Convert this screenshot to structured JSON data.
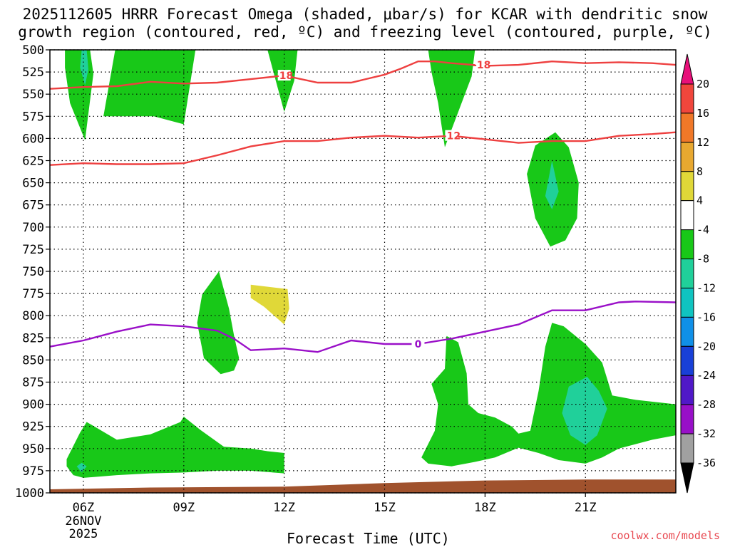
{
  "title": {
    "line1": "2025112605 HRRR Forecast Omega (shaded, μbar/s) for KCAR with dendritic snow",
    "line2": "growth region (contoured, red, ºC) and freezing level (contoured, purple, ºC)"
  },
  "credit": "coolwx.com/models",
  "chart_data": {
    "type": "area",
    "xlabel": "Forecast Time (UTC)",
    "ylabel": "",
    "x_range_hours_utc": [
      5,
      23.7
    ],
    "y_range_hpa": [
      500,
      1000
    ],
    "y_inverted": true,
    "grid": true,
    "y_ticks": [
      "500",
      "525",
      "550",
      "575",
      "600",
      "625",
      "650",
      "675",
      "700",
      "725",
      "750",
      "775",
      "800",
      "825",
      "850",
      "875",
      "900",
      "925",
      "950",
      "975",
      "1000"
    ],
    "x_ticks": [
      {
        "hour": 6,
        "label": "06Z",
        "sub1": "26NOV",
        "sub2": "2025"
      },
      {
        "hour": 9,
        "label": "09Z"
      },
      {
        "hour": 12,
        "label": "12Z"
      },
      {
        "hour": 15,
        "label": "15Z"
      },
      {
        "hour": 18,
        "label": "18Z"
      },
      {
        "hour": 21,
        "label": "21Z"
      }
    ],
    "colorbar": {
      "labels": [
        "20",
        "16",
        "12",
        "8",
        "4",
        "-4",
        "-8",
        "-12",
        "-16",
        "-20",
        "-24",
        "-28",
        "-32",
        "-36"
      ],
      "colors": [
        "#e8107a",
        "#f0463c",
        "#f07828",
        "#e8a830",
        "#e0d838",
        "#ffffff",
        "#18c818",
        "#20d09a",
        "#10c4c0",
        "#1090e8",
        "#1840d8",
        "#5018c8",
        "#9810c8",
        "#a0a0a0",
        "#000000"
      ]
    },
    "contours": [
      {
        "name": "-18",
        "color": "#ee4040",
        "label": "-18",
        "points": [
          [
            5,
            544
          ],
          [
            6,
            542
          ],
          [
            7,
            541
          ],
          [
            8,
            536
          ],
          [
            9,
            538
          ],
          [
            10,
            537
          ],
          [
            11,
            533
          ],
          [
            12,
            529
          ],
          [
            13,
            537
          ],
          [
            14,
            537
          ],
          [
            15,
            528
          ],
          [
            15.5,
            521
          ],
          [
            16,
            513
          ],
          [
            16.5,
            513
          ],
          [
            17,
            515
          ],
          [
            18,
            518
          ],
          [
            19,
            517
          ],
          [
            20,
            513
          ],
          [
            21,
            515
          ],
          [
            22,
            514
          ],
          [
            23,
            515
          ],
          [
            23.7,
            517
          ]
        ]
      },
      {
        "name": "-12",
        "color": "#ee4040",
        "label": "-12",
        "points": [
          [
            5,
            630
          ],
          [
            6,
            628
          ],
          [
            7,
            629
          ],
          [
            8,
            629
          ],
          [
            9,
            628
          ],
          [
            10,
            619
          ],
          [
            11,
            609
          ],
          [
            12,
            603
          ],
          [
            13,
            603
          ],
          [
            14,
            599
          ],
          [
            15,
            597
          ],
          [
            16,
            599
          ],
          [
            17,
            597
          ],
          [
            18,
            601
          ],
          [
            19,
            605
          ],
          [
            20,
            603
          ],
          [
            21,
            603
          ],
          [
            22,
            597
          ],
          [
            23,
            595
          ],
          [
            23.7,
            593
          ]
        ]
      },
      {
        "name": "0",
        "color": "#9a10c8",
        "label": "0",
        "points": [
          [
            5,
            835
          ],
          [
            6,
            828
          ],
          [
            7,
            818
          ],
          [
            8,
            810
          ],
          [
            9,
            812
          ],
          [
            10,
            817
          ],
          [
            10.5,
            826
          ],
          [
            11,
            839
          ],
          [
            12,
            837
          ],
          [
            13,
            841
          ],
          [
            14,
            828
          ],
          [
            15,
            832
          ],
          [
            16,
            832
          ],
          [
            17,
            826
          ],
          [
            18,
            818
          ],
          [
            19,
            810
          ],
          [
            20,
            794
          ],
          [
            21,
            794
          ],
          [
            22,
            785
          ],
          [
            22.5,
            784
          ],
          [
            23.7,
            785
          ]
        ]
      }
    ],
    "omega_regions": [
      {
        "level": "-4 to -8",
        "color": "#18c818",
        "points": [
          [
            5.45,
            500
          ],
          [
            6.95,
            500
          ],
          [
            6.6,
            575
          ],
          [
            8.1,
            575
          ],
          [
            9,
            584
          ],
          [
            9.35,
            500
          ],
          [
            6.95,
            500
          ],
          [
            6.2,
            500
          ],
          [
            6.3,
            527
          ],
          [
            6.05,
            602
          ],
          [
            5.6,
            560
          ],
          [
            5.45,
            520
          ]
        ]
      },
      {
        "level": "-4 to -8",
        "color": "#18c818",
        "points": [
          [
            11.5,
            500
          ],
          [
            12.4,
            500
          ],
          [
            12.3,
            535
          ],
          [
            12,
            570
          ],
          [
            11.75,
            535
          ]
        ]
      },
      {
        "level": "-4 to -8",
        "color": "#18c818",
        "points": [
          [
            16.3,
            500
          ],
          [
            17.7,
            500
          ],
          [
            17.6,
            530
          ],
          [
            17.2,
            570
          ],
          [
            16.8,
            610
          ],
          [
            16.6,
            560
          ],
          [
            16.4,
            525
          ]
        ]
      },
      {
        "level": "-4 to -8",
        "color": "#18c818",
        "points": [
          [
            20.1,
            593
          ],
          [
            20.5,
            610
          ],
          [
            20.8,
            650
          ],
          [
            20.75,
            690
          ],
          [
            20.4,
            715
          ],
          [
            19.95,
            722
          ],
          [
            19.5,
            690
          ],
          [
            19.25,
            640
          ],
          [
            19.5,
            608
          ]
        ]
      },
      {
        "level": "-4 to -8",
        "color": "#18c818",
        "points": [
          [
            10.05,
            750
          ],
          [
            10.35,
            792
          ],
          [
            10.5,
            822
          ],
          [
            10.65,
            848
          ],
          [
            10.5,
            862
          ],
          [
            10.1,
            866
          ],
          [
            9.6,
            848
          ],
          [
            9.4,
            808
          ],
          [
            9.55,
            776
          ]
        ]
      },
      {
        "level": "-4 to -8",
        "color": "#18c818",
        "points": [
          [
            5.5,
            962
          ],
          [
            5.9,
            932
          ],
          [
            6.1,
            920
          ],
          [
            7,
            940
          ],
          [
            8,
            934
          ],
          [
            8.9,
            920
          ],
          [
            9,
            914
          ],
          [
            9.5,
            929
          ],
          [
            10.2,
            948
          ],
          [
            11,
            950
          ],
          [
            11.5,
            953
          ],
          [
            12,
            955
          ],
          [
            12,
            978
          ],
          [
            11,
            975
          ],
          [
            10,
            975
          ],
          [
            9,
            977
          ],
          [
            8,
            978
          ],
          [
            7,
            980
          ],
          [
            6,
            983
          ],
          [
            5.7,
            980
          ],
          [
            5.5,
            970
          ]
        ]
      },
      {
        "level": "-4 to -8",
        "color": "#18c818",
        "points": [
          [
            16.85,
            823
          ],
          [
            17.2,
            830
          ],
          [
            17.45,
            865
          ],
          [
            17.5,
            900
          ],
          [
            17.8,
            910
          ],
          [
            18.3,
            915
          ],
          [
            18.8,
            925
          ],
          [
            19,
            933
          ],
          [
            19.35,
            930
          ],
          [
            19.6,
            885
          ],
          [
            19.8,
            835
          ],
          [
            20,
            808
          ],
          [
            20.35,
            812
          ],
          [
            21,
            832
          ],
          [
            21.5,
            853
          ],
          [
            21.8,
            890
          ],
          [
            22.5,
            895
          ],
          [
            23.7,
            900
          ],
          [
            23.7,
            935
          ],
          [
            23,
            940
          ],
          [
            22,
            950
          ],
          [
            21.5,
            960
          ],
          [
            21,
            967
          ],
          [
            20.2,
            963
          ],
          [
            19.6,
            955
          ],
          [
            19,
            949
          ],
          [
            18.3,
            960
          ],
          [
            17.7,
            965
          ],
          [
            17,
            970
          ],
          [
            16.3,
            967
          ],
          [
            16.1,
            960
          ],
          [
            16.5,
            930
          ],
          [
            16.6,
            900
          ],
          [
            16.4,
            877
          ],
          [
            16.8,
            860
          ]
        ]
      },
      {
        "level": "-8 to -12",
        "color": "#20d09a",
        "points": [
          [
            5.95,
            500
          ],
          [
            6.1,
            500
          ],
          [
            6.15,
            522
          ],
          [
            6.05,
            540
          ],
          [
            5.9,
            520
          ]
        ]
      },
      {
        "level": "-8 to -12",
        "color": "#20d09a",
        "points": [
          [
            20,
            625
          ],
          [
            20.2,
            660
          ],
          [
            20,
            680
          ],
          [
            19.8,
            665
          ]
        ]
      },
      {
        "level": "-8 to -12",
        "color": "#20d09a",
        "points": [
          [
            21.05,
            869
          ],
          [
            21.4,
            885
          ],
          [
            21.65,
            905
          ],
          [
            21.35,
            935
          ],
          [
            21,
            946
          ],
          [
            20.55,
            935
          ],
          [
            20.3,
            910
          ],
          [
            20.5,
            880
          ]
        ]
      },
      {
        "level": "-8 to -12",
        "color": "#20d09a",
        "points": [
          [
            5.95,
            966
          ],
          [
            6.1,
            970
          ],
          [
            5.95,
            977
          ],
          [
            5.8,
            970
          ]
        ]
      },
      {
        "level": "4 to 8",
        "color": "#e0d838",
        "points": [
          [
            11,
            765
          ],
          [
            12.1,
            770
          ],
          [
            12.15,
            792
          ],
          [
            12,
            810
          ],
          [
            11.4,
            790
          ],
          [
            11,
            780
          ]
        ]
      }
    ],
    "terrain_color": "#a0522d",
    "terrain_top_hpa": [
      [
        5,
        996
      ],
      [
        8,
        994
      ],
      [
        12,
        993
      ],
      [
        15,
        989
      ],
      [
        18,
        986
      ],
      [
        21,
        985
      ],
      [
        23.7,
        985
      ]
    ]
  }
}
